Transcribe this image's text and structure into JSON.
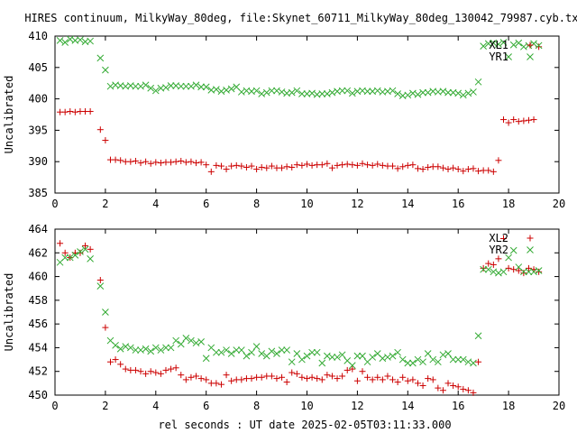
{
  "title": "HIRES continuum, MilkyWay_80deg, file:Skynet_60711_MilkyWay_80deg_130042_79987.cyb.txt",
  "xlabel": "rel seconds : UT date 2025-02-05T03:11:33.000",
  "colors": {
    "series_red": "#cc0000",
    "series_green": "#33aa33",
    "axis": "#000000"
  },
  "chart_data": [
    {
      "type": "scatter",
      "title": "",
      "ylabel": "Uncalibrated",
      "xlim": [
        0,
        20
      ],
      "ylim": [
        385,
        410
      ],
      "xticks": [
        0,
        2,
        4,
        6,
        8,
        10,
        12,
        14,
        16,
        18,
        20
      ],
      "yticks": [
        385,
        390,
        395,
        400,
        405,
        410
      ],
      "grid": false,
      "legend": "top-right",
      "series": [
        {
          "name": "XL1",
          "marker": "plus",
          "color": "#cc0000",
          "x": [
            0.2,
            0.4,
            0.6,
            0.8,
            1.0,
            1.2,
            1.4,
            1.8,
            2.0,
            2.2,
            2.4,
            2.6,
            2.8,
            3.0,
            3.2,
            3.4,
            3.6,
            3.8,
            4.0,
            4.2,
            4.4,
            4.6,
            4.8,
            5.0,
            5.2,
            5.4,
            5.6,
            5.8,
            6.0,
            6.2,
            6.4,
            6.6,
            6.8,
            7.0,
            7.2,
            7.4,
            7.6,
            7.8,
            8.0,
            8.2,
            8.4,
            8.6,
            8.8,
            9.0,
            9.2,
            9.4,
            9.6,
            9.8,
            10.0,
            10.2,
            10.4,
            10.6,
            10.8,
            11.0,
            11.2,
            11.4,
            11.6,
            11.8,
            12.0,
            12.2,
            12.4,
            12.6,
            12.8,
            13.0,
            13.2,
            13.4,
            13.6,
            13.8,
            14.0,
            14.2,
            14.4,
            14.6,
            14.8,
            15.0,
            15.2,
            15.4,
            15.6,
            15.8,
            16.0,
            16.2,
            16.4,
            16.6,
            16.8,
            17.0,
            17.2,
            17.4,
            17.6,
            17.8,
            18.0,
            18.2,
            18.4,
            18.6,
            18.8,
            19.0,
            19.2
          ],
          "y": [
            397.9,
            397.9,
            398.0,
            397.9,
            398.0,
            398.0,
            398.0,
            395.1,
            393.4,
            390.3,
            390.3,
            390.2,
            390.0,
            390.0,
            390.1,
            389.8,
            390.0,
            389.7,
            389.9,
            389.8,
            389.9,
            389.9,
            390.0,
            390.1,
            389.9,
            390.0,
            389.8,
            389.9,
            389.5,
            388.4,
            389.4,
            389.3,
            388.8,
            389.3,
            389.4,
            389.3,
            389.1,
            389.3,
            388.8,
            389.1,
            389.0,
            389.3,
            389.0,
            389.0,
            389.2,
            389.1,
            389.5,
            389.4,
            389.6,
            389.4,
            389.5,
            389.5,
            389.7,
            389.0,
            389.4,
            389.5,
            389.6,
            389.5,
            389.4,
            389.7,
            389.5,
            389.4,
            389.6,
            389.4,
            389.3,
            389.3,
            388.9,
            389.2,
            389.4,
            389.5,
            388.9,
            388.8,
            389.1,
            389.2,
            389.2,
            389.0,
            388.8,
            389.0,
            388.8,
            388.5,
            388.8,
            388.9,
            388.5,
            388.6,
            388.6,
            388.4,
            390.2,
            396.7,
            396.2,
            396.7,
            396.4,
            396.5,
            396.6,
            396.7,
            408.3
          ]
        },
        {
          "name": "YR1",
          "marker": "cross",
          "color": "#33aa33",
          "x": [
            0.2,
            0.4,
            0.6,
            0.8,
            1.0,
            1.2,
            1.4,
            1.8,
            2.0,
            2.2,
            2.4,
            2.6,
            2.8,
            3.0,
            3.2,
            3.4,
            3.6,
            3.8,
            4.0,
            4.2,
            4.4,
            4.6,
            4.8,
            5.0,
            5.2,
            5.4,
            5.6,
            5.8,
            6.0,
            6.2,
            6.4,
            6.6,
            6.8,
            7.0,
            7.2,
            7.4,
            7.6,
            7.8,
            8.0,
            8.2,
            8.4,
            8.6,
            8.8,
            9.0,
            9.2,
            9.4,
            9.6,
            9.8,
            10.0,
            10.2,
            10.4,
            10.6,
            10.8,
            11.0,
            11.2,
            11.4,
            11.6,
            11.8,
            12.0,
            12.2,
            12.4,
            12.6,
            12.8,
            13.0,
            13.2,
            13.4,
            13.6,
            13.8,
            14.0,
            14.2,
            14.4,
            14.6,
            14.8,
            15.0,
            15.2,
            15.4,
            15.6,
            15.8,
            16.0,
            16.2,
            16.4,
            16.6,
            16.8,
            17.0,
            17.2,
            17.4,
            17.6,
            17.8,
            18.0,
            18.2,
            18.4,
            18.6,
            18.8,
            19.0,
            19.2
          ],
          "y": [
            409.3,
            409.0,
            409.5,
            409.3,
            409.4,
            409.1,
            409.2,
            406.5,
            404.6,
            402.0,
            402.2,
            402.1,
            402.0,
            402.1,
            402.0,
            402.0,
            402.2,
            401.7,
            401.3,
            401.7,
            401.8,
            402.1,
            402.1,
            402.0,
            402.0,
            402.0,
            402.2,
            401.9,
            401.9,
            401.4,
            401.5,
            401.2,
            401.4,
            401.6,
            401.9,
            401.1,
            401.3,
            401.2,
            401.3,
            400.8,
            401.0,
            401.3,
            401.3,
            401.1,
            400.9,
            401.0,
            401.3,
            400.8,
            400.8,
            400.9,
            400.7,
            400.8,
            400.8,
            401.0,
            401.2,
            401.3,
            401.3,
            400.9,
            401.2,
            401.3,
            401.2,
            401.2,
            401.3,
            401.1,
            401.2,
            401.3,
            400.8,
            400.5,
            400.6,
            400.9,
            400.7,
            401.0,
            401.0,
            401.2,
            401.1,
            401.2,
            401.0,
            401.0,
            400.9,
            400.6,
            400.9,
            401.1,
            402.7,
            408.4,
            408.8,
            408.9,
            408.7,
            409.0,
            406.7,
            408.6,
            408.9,
            408.3,
            408.5,
            408.8,
            408.5
          ]
        }
      ]
    },
    {
      "type": "scatter",
      "title": "",
      "ylabel": "Uncalibrated",
      "xlim": [
        0,
        20
      ],
      "ylim": [
        450,
        464
      ],
      "xticks": [
        0,
        2,
        4,
        6,
        8,
        10,
        12,
        14,
        16,
        18,
        20
      ],
      "yticks": [
        450,
        452,
        454,
        456,
        458,
        460,
        462,
        464
      ],
      "grid": false,
      "legend": "top-right",
      "series": [
        {
          "name": "XL2",
          "marker": "plus",
          "color": "#cc0000",
          "x": [
            0.2,
            0.4,
            0.6,
            0.8,
            1.0,
            1.2,
            1.4,
            1.8,
            2.0,
            2.2,
            2.4,
            2.6,
            2.8,
            3.0,
            3.2,
            3.4,
            3.6,
            3.8,
            4.0,
            4.2,
            4.4,
            4.6,
            4.8,
            5.0,
            5.2,
            5.4,
            5.6,
            5.8,
            6.0,
            6.2,
            6.4,
            6.6,
            6.8,
            7.0,
            7.2,
            7.4,
            7.6,
            7.8,
            8.0,
            8.2,
            8.4,
            8.6,
            8.8,
            9.0,
            9.2,
            9.4,
            9.6,
            9.8,
            10.0,
            10.2,
            10.4,
            10.6,
            10.8,
            11.0,
            11.2,
            11.4,
            11.6,
            11.8,
            12.0,
            12.2,
            12.4,
            12.6,
            12.8,
            13.0,
            13.2,
            13.4,
            13.6,
            13.8,
            14.0,
            14.2,
            14.4,
            14.6,
            14.8,
            15.0,
            15.2,
            15.4,
            15.6,
            15.8,
            16.0,
            16.2,
            16.4,
            16.6,
            16.8,
            17.0,
            17.2,
            17.4,
            17.6,
            17.8,
            18.0,
            18.2,
            18.4,
            18.6,
            18.8,
            19.0,
            19.2
          ],
          "y": [
            462.8,
            462.0,
            461.6,
            462.0,
            462.0,
            462.6,
            462.3,
            459.7,
            455.7,
            452.8,
            453.0,
            452.6,
            452.2,
            452.1,
            452.1,
            452.0,
            451.8,
            452.0,
            451.9,
            451.8,
            452.1,
            452.2,
            452.3,
            451.7,
            451.3,
            451.5,
            451.6,
            451.4,
            451.3,
            451.0,
            451.0,
            450.9,
            451.7,
            451.2,
            451.3,
            451.3,
            451.4,
            451.4,
            451.5,
            451.5,
            451.6,
            451.6,
            451.4,
            451.5,
            451.1,
            451.9,
            451.8,
            451.5,
            451.4,
            451.5,
            451.4,
            451.3,
            451.7,
            451.6,
            451.4,
            451.6,
            452.1,
            452.2,
            451.2,
            452.0,
            451.5,
            451.3,
            451.5,
            451.3,
            451.6,
            451.3,
            451.1,
            451.5,
            451.2,
            451.3,
            451.0,
            450.8,
            451.4,
            451.3,
            450.6,
            450.4,
            451.0,
            450.8,
            450.7,
            450.5,
            450.4,
            450.2,
            452.8,
            460.7,
            461.1,
            461.0,
            461.5,
            463.2,
            460.7,
            460.6,
            460.5,
            460.3,
            460.7,
            460.6,
            460.4
          ]
        },
        {
          "name": "YR2",
          "marker": "cross",
          "color": "#33aa33",
          "x": [
            0.2,
            0.4,
            0.6,
            0.8,
            1.0,
            1.2,
            1.4,
            1.8,
            2.0,
            2.2,
            2.4,
            2.6,
            2.8,
            3.0,
            3.2,
            3.4,
            3.6,
            3.8,
            4.0,
            4.2,
            4.4,
            4.6,
            4.8,
            5.0,
            5.2,
            5.4,
            5.6,
            5.8,
            6.0,
            6.2,
            6.4,
            6.6,
            6.8,
            7.0,
            7.2,
            7.4,
            7.6,
            7.8,
            8.0,
            8.2,
            8.4,
            8.6,
            8.8,
            9.0,
            9.2,
            9.4,
            9.6,
            9.8,
            10.0,
            10.2,
            10.4,
            10.6,
            10.8,
            11.0,
            11.2,
            11.4,
            11.6,
            11.8,
            12.0,
            12.2,
            12.4,
            12.6,
            12.8,
            13.0,
            13.2,
            13.4,
            13.6,
            13.8,
            14.0,
            14.2,
            14.4,
            14.6,
            14.8,
            15.0,
            15.2,
            15.4,
            15.6,
            15.8,
            16.0,
            16.2,
            16.4,
            16.6,
            16.8,
            17.0,
            17.2,
            17.4,
            17.6,
            17.8,
            18.0,
            18.2,
            18.4,
            18.6,
            18.8,
            19.0,
            19.2
          ],
          "y": [
            461.2,
            461.6,
            461.6,
            461.8,
            462.1,
            462.3,
            461.5,
            459.2,
            457.0,
            454.6,
            454.2,
            453.9,
            454.1,
            454.0,
            453.8,
            453.8,
            453.9,
            453.7,
            454.0,
            453.8,
            454.0,
            454.0,
            454.6,
            454.3,
            454.8,
            454.6,
            454.4,
            454.5,
            453.1,
            454.0,
            453.6,
            453.6,
            453.8,
            453.5,
            453.8,
            453.8,
            453.3,
            453.6,
            454.1,
            453.5,
            453.3,
            453.7,
            453.5,
            453.8,
            453.8,
            452.8,
            453.5,
            453.0,
            453.3,
            453.6,
            453.6,
            452.7,
            453.3,
            453.2,
            453.2,
            453.4,
            452.9,
            452.5,
            453.3,
            453.3,
            452.8,
            453.2,
            453.5,
            453.1,
            453.2,
            453.3,
            453.6,
            453.0,
            452.7,
            452.7,
            453.0,
            452.8,
            453.5,
            453.0,
            452.8,
            453.4,
            453.5,
            453.0,
            453.0,
            453.0,
            452.8,
            452.7,
            455.0,
            460.6,
            460.6,
            460.4,
            460.3,
            460.4,
            461.6,
            462.2,
            460.8,
            460.4,
            460.4,
            460.4,
            460.5
          ]
        }
      ]
    }
  ]
}
